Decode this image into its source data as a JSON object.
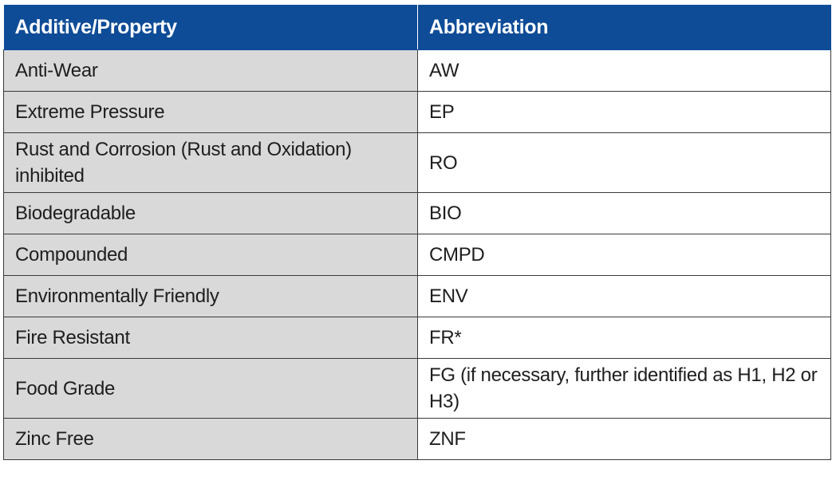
{
  "table": {
    "headers": [
      "Additive/Property",
      "Abbreviation"
    ],
    "rows": [
      {
        "property": "Anti-Wear",
        "abbreviation": "AW"
      },
      {
        "property": "Extreme Pressure",
        "abbreviation": "EP"
      },
      {
        "property": "Rust and Corrosion (Rust and Oxidation) inhibited",
        "abbreviation": "RO"
      },
      {
        "property": "Biodegradable",
        "abbreviation": "BIO"
      },
      {
        "property": "Compounded",
        "abbreviation": "CMPD"
      },
      {
        "property": "Environmentally Friendly",
        "abbreviation": "ENV"
      },
      {
        "property": "Fire Resistant",
        "abbreviation": "FR*"
      },
      {
        "property": "Food Grade",
        "abbreviation": "FG (if necessary, further identified as H1, H2 or H3)"
      },
      {
        "property": "Zinc Free",
        "abbreviation": "ZNF"
      }
    ],
    "colors": {
      "header_bg": "#0f4c97",
      "header_text": "#ffffff",
      "property_cell_bg": "#d9d9d9",
      "abbreviation_cell_bg": "#ffffff",
      "border": "#3a3a3a"
    }
  }
}
